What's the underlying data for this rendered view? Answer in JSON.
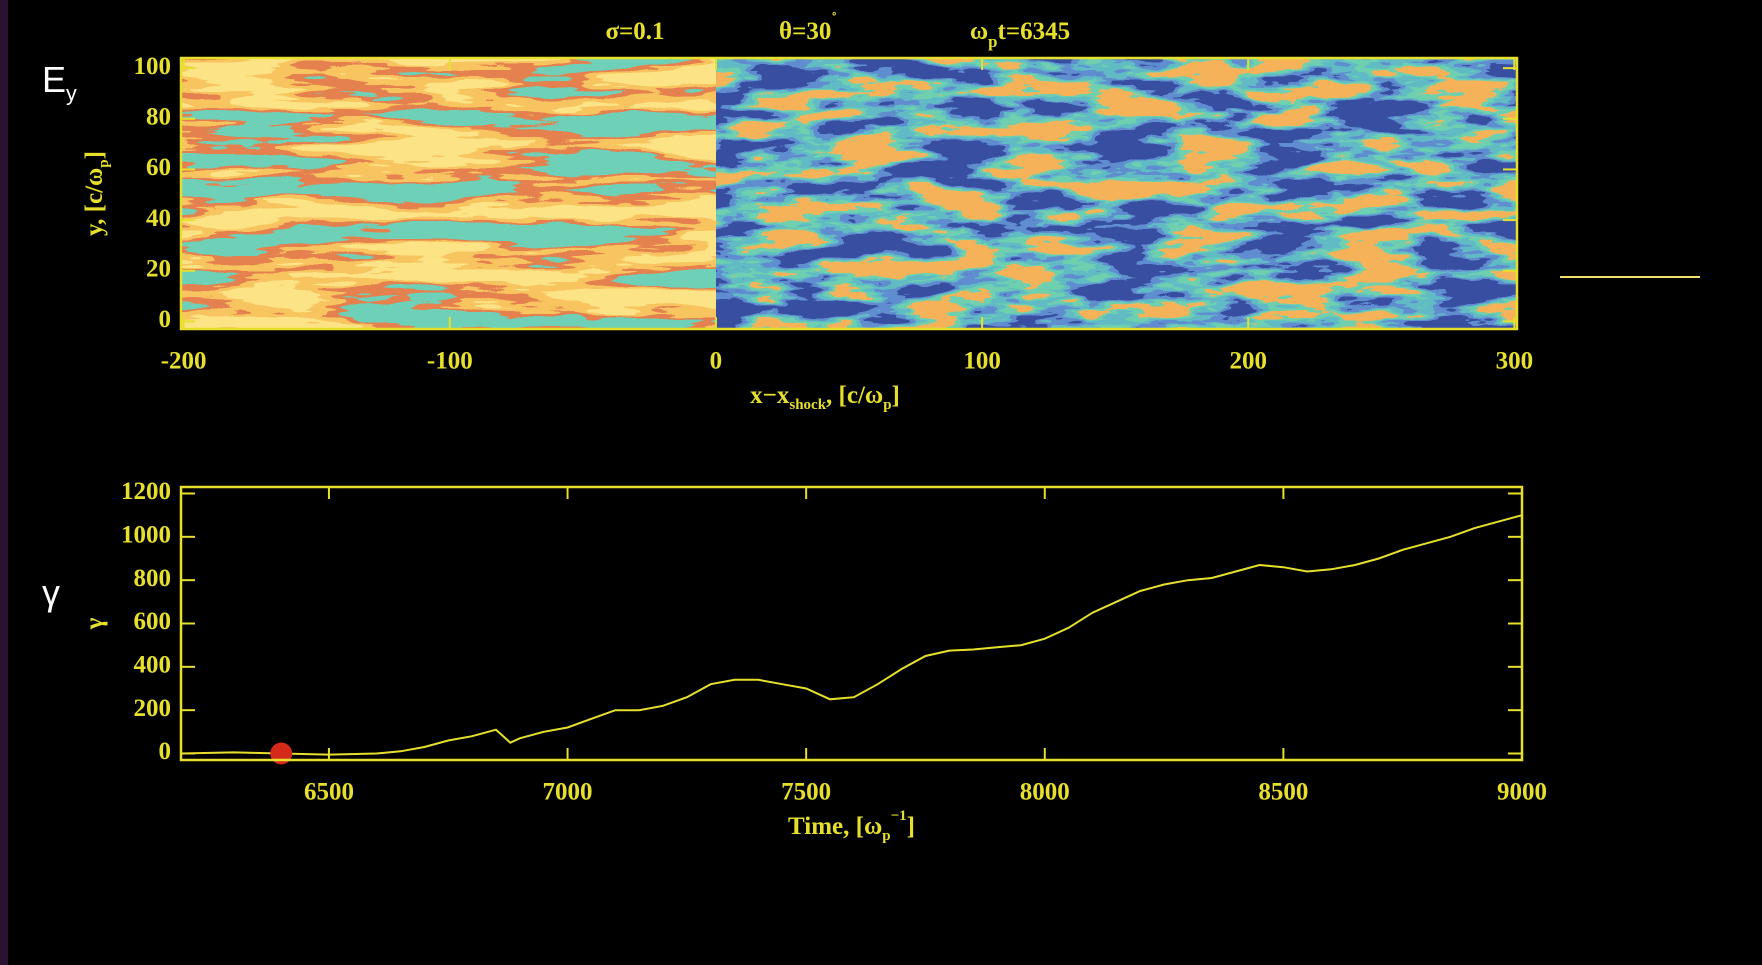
{
  "chart_data": [
    {
      "type": "heatmap",
      "title": [
        [
          {
            "text": "σ=0.1"
          }
        ],
        [
          {
            "text": "θ=30"
          },
          {
            "text": "˚",
            "sup": true
          }
        ],
        [
          {
            "text": "ω"
          },
          {
            "text": "p",
            "sub": true
          },
          {
            "text": "t=6345"
          }
        ]
      ],
      "side_label": [
        {
          "text": "E"
        },
        {
          "text": "y",
          "sub": true
        }
      ],
      "xlabel": [
        {
          "text": "x−x"
        },
        {
          "text": "shock",
          "sub": true
        },
        {
          "text": ", [c/ω"
        },
        {
          "text": "p",
          "sub": true
        },
        {
          "text": "]"
        }
      ],
      "ylabel": [
        {
          "text": "y, [c/ω"
        },
        {
          "text": "p",
          "sub": true
        },
        {
          "text": "]"
        }
      ],
      "xlim": [
        -201,
        301
      ],
      "xticks": [
        -200,
        -100,
        0,
        100,
        200,
        300
      ],
      "ylim": [
        -3,
        104
      ],
      "yticks": [
        0,
        20,
        40,
        60,
        80,
        100
      ]
    },
    {
      "type": "line",
      "side_label": [
        {
          "text": "γ"
        }
      ],
      "xlabel": [
        {
          "text": "Time, [ω"
        },
        {
          "text": "p",
          "sub": true
        },
        {
          "text": "−1",
          "sup": true
        },
        {
          "text": "]"
        }
      ],
      "ylabel": [
        {
          "text": "γ"
        }
      ],
      "xlim": [
        6190,
        9000
      ],
      "xticks": [
        6500,
        7000,
        7500,
        8000,
        8500,
        9000
      ],
      "ylim": [
        -30,
        1230
      ],
      "yticks": [
        0,
        200,
        400,
        600,
        800,
        1000,
        1200
      ],
      "color": "#e6e02c",
      "x": [
        6190,
        6300,
        6400,
        6500,
        6600,
        6650,
        6700,
        6750,
        6800,
        6850,
        6880,
        6900,
        6950,
        7000,
        7050,
        7100,
        7150,
        7200,
        7250,
        7300,
        7350,
        7400,
        7450,
        7500,
        7550,
        7600,
        7650,
        7700,
        7750,
        7800,
        7850,
        7900,
        7950,
        8000,
        8050,
        8100,
        8150,
        8200,
        8250,
        8300,
        8350,
        8400,
        8450,
        8500,
        8550,
        8600,
        8650,
        8700,
        8750,
        8800,
        8850,
        8900,
        8950,
        9000
      ],
      "values": [
        0,
        5,
        0,
        -5,
        0,
        10,
        30,
        60,
        80,
        110,
        50,
        70,
        100,
        120,
        160,
        200,
        200,
        220,
        260,
        320,
        340,
        340,
        320,
        300,
        250,
        260,
        320,
        390,
        450,
        475,
        480,
        490,
        500,
        530,
        580,
        650,
        700,
        750,
        780,
        800,
        810,
        840,
        870,
        860,
        840,
        850,
        870,
        900,
        940,
        970,
        1000,
        1040,
        1070,
        1100
      ],
      "marker": {
        "x": 6400,
        "y": 0,
        "color": "#d42a1a"
      }
    }
  ]
}
